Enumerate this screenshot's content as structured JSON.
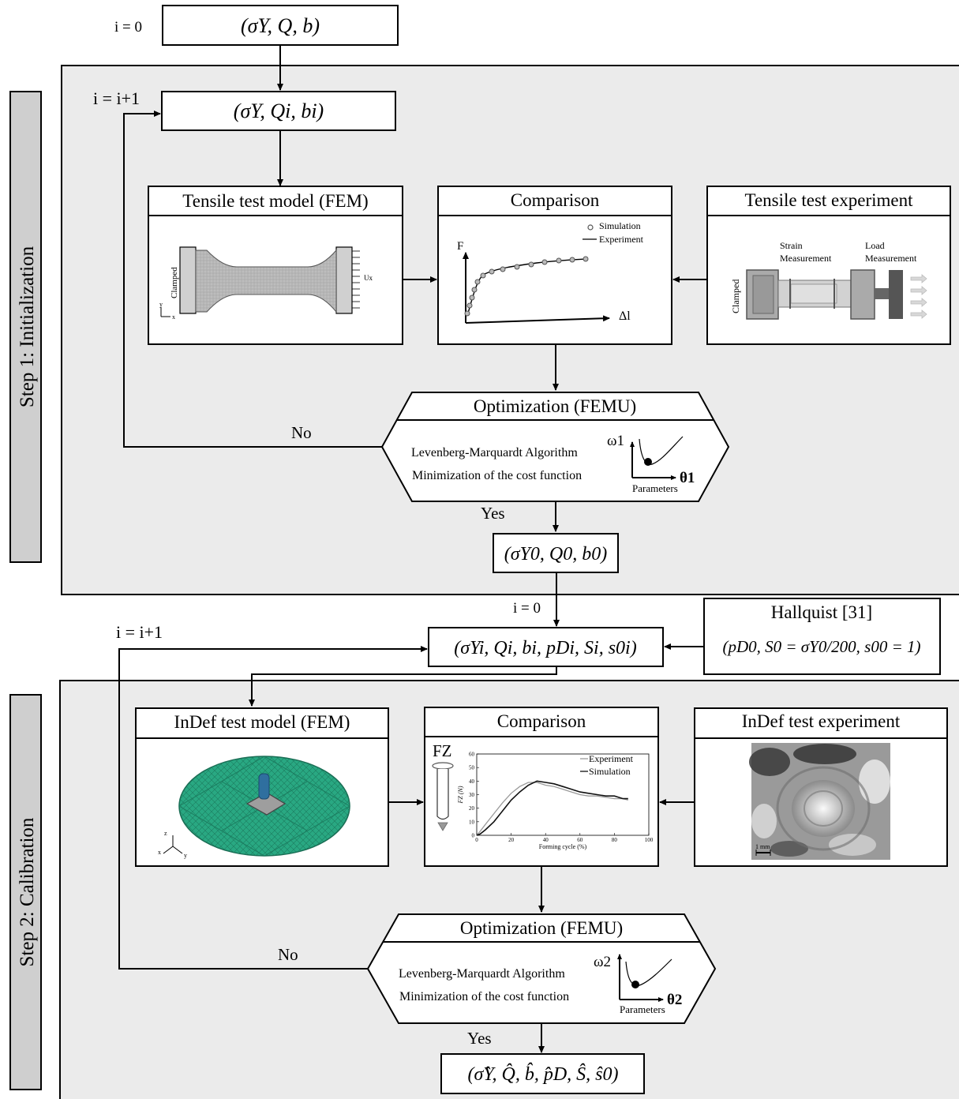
{
  "step1": {
    "label": "Step 1: Initialization",
    "init_counter": "i = 0",
    "loop_counter": "i = i+1",
    "initial_params": "(σY, Q, b)",
    "iter_params": "(σY, Qi, bi)",
    "model_title": "Tensile test model (FEM)",
    "model_labels": {
      "clamped": "Clamped",
      "ux": "Ux",
      "y": "y",
      "x": "x"
    },
    "comparison_title": "Comparison",
    "comparison": {
      "legend_sim": "Simulation",
      "legend_exp": "Experiment",
      "f_label": "F",
      "dl_label": "Δl"
    },
    "experiment_title": "Tensile test experiment",
    "experiment_labels": {
      "strain1": "Strain",
      "strain2": "Measurement",
      "load1": "Load",
      "load2": "Measurement",
      "clamped": "Clamped"
    },
    "optimization_title": "Optimization (FEMU)",
    "algorithm": "Levenberg-Marquardt Algorithm",
    "minimization": "Minimization of the cost function",
    "omega": "ω1",
    "theta": "θ1",
    "parameters": "Parameters",
    "no": "No",
    "yes": "Yes",
    "result": "(σY0, Q0, b0)"
  },
  "step2": {
    "label": "Step 2: Calibration",
    "init_counter": "i = 0",
    "loop_counter": "i = i+1",
    "iter_params": "(σYi, Qi, bi, pDi, Si, s0i)",
    "hallquist_title": "Hallquist [31]",
    "hallquist_params": "(pD0, S0 = σY0/200, s00 = 1)",
    "model_title": "InDef test model (FEM)",
    "model_axes": {
      "z": "z",
      "x": "x",
      "y": "y"
    },
    "comparison_title": "Comparison",
    "experiment_title": "InDef test experiment",
    "scale_bar": "1 mm",
    "optimization_title": "Optimization (FEMU)",
    "algorithm": "Levenberg-Marquardt Algorithm",
    "minimization": "Minimization of the cost function",
    "omega": "ω2",
    "theta": "θ2",
    "parameters": "Parameters",
    "no": "No",
    "yes": "Yes",
    "result": "(σ̂Y, Q̂, b̂, p̂D, Ŝ, ŝ0)"
  },
  "chart_data": {
    "type": "line",
    "title": "",
    "corner_label": "FZ",
    "xlabel": "Forming cycle (%)",
    "ylabel": "FZ (N)",
    "xlim": [
      0,
      100
    ],
    "ylim": [
      0,
      60
    ],
    "xticks": [
      0,
      20,
      40,
      60,
      80,
      100
    ],
    "yticks": [
      0,
      10,
      20,
      30,
      40,
      50,
      60
    ],
    "legend_position": "top-right",
    "series": [
      {
        "name": "Experiment",
        "color": "#9a9a9a",
        "x": [
          0,
          2,
          5,
          10,
          15,
          20,
          25,
          30,
          35,
          40,
          45,
          50,
          55,
          60,
          65,
          70,
          75,
          80,
          85,
          88
        ],
        "y": [
          0,
          3,
          8,
          16,
          24,
          31,
          36,
          39,
          39,
          37,
          36,
          34,
          32,
          30,
          29,
          29,
          28,
          27,
          27,
          26
        ]
      },
      {
        "name": "Simulation",
        "color": "#111111",
        "x": [
          0,
          2,
          5,
          10,
          15,
          20,
          25,
          30,
          35,
          40,
          45,
          50,
          55,
          60,
          65,
          70,
          75,
          80,
          85,
          88
        ],
        "y": [
          0,
          1,
          4,
          10,
          18,
          26,
          32,
          37,
          40,
          39,
          38,
          36,
          34,
          32,
          31,
          30,
          29,
          29,
          27,
          27
        ]
      }
    ]
  }
}
